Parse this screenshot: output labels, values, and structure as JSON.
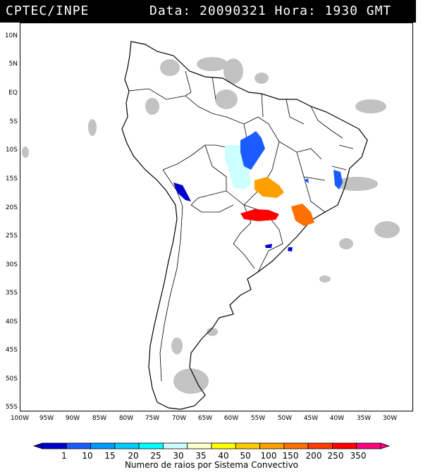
{
  "header": {
    "left": "CPTEC/INPE",
    "right": "Data: 20090321 Hora: 1930 GMT"
  },
  "axes": {
    "lat_labels": [
      "10N",
      "5N",
      "EQ",
      "5S",
      "10S",
      "15S",
      "20S",
      "25S",
      "30S",
      "35S",
      "40S",
      "45S",
      "50S",
      "55S"
    ],
    "lon_labels": [
      "100W",
      "95W",
      "90W",
      "85W",
      "80W",
      "75W",
      "70W",
      "65W",
      "60W",
      "55W",
      "50W",
      "45W",
      "40W",
      "35W",
      "30W"
    ]
  },
  "colorbar": {
    "labels": [
      "1",
      "10",
      "15",
      "20",
      "25",
      "30",
      "35",
      "40",
      "50",
      "100",
      "150",
      "200",
      "250",
      "350"
    ],
    "colors": [
      "#0000cc",
      "#1a5cff",
      "#0099ff",
      "#00ccff",
      "#00ffff",
      "#ccffff",
      "#ffffcc",
      "#ffff00",
      "#ffcc00",
      "#ffa000",
      "#ff7000",
      "#ff3c00",
      "#ff0000",
      "#ff0080"
    ],
    "title": "Numero de raios por Sistema Convectivo"
  },
  "colors": {
    "background": "#ffffff",
    "land_outline": "#000000",
    "cloud_gray": "#b8b8b8"
  }
}
